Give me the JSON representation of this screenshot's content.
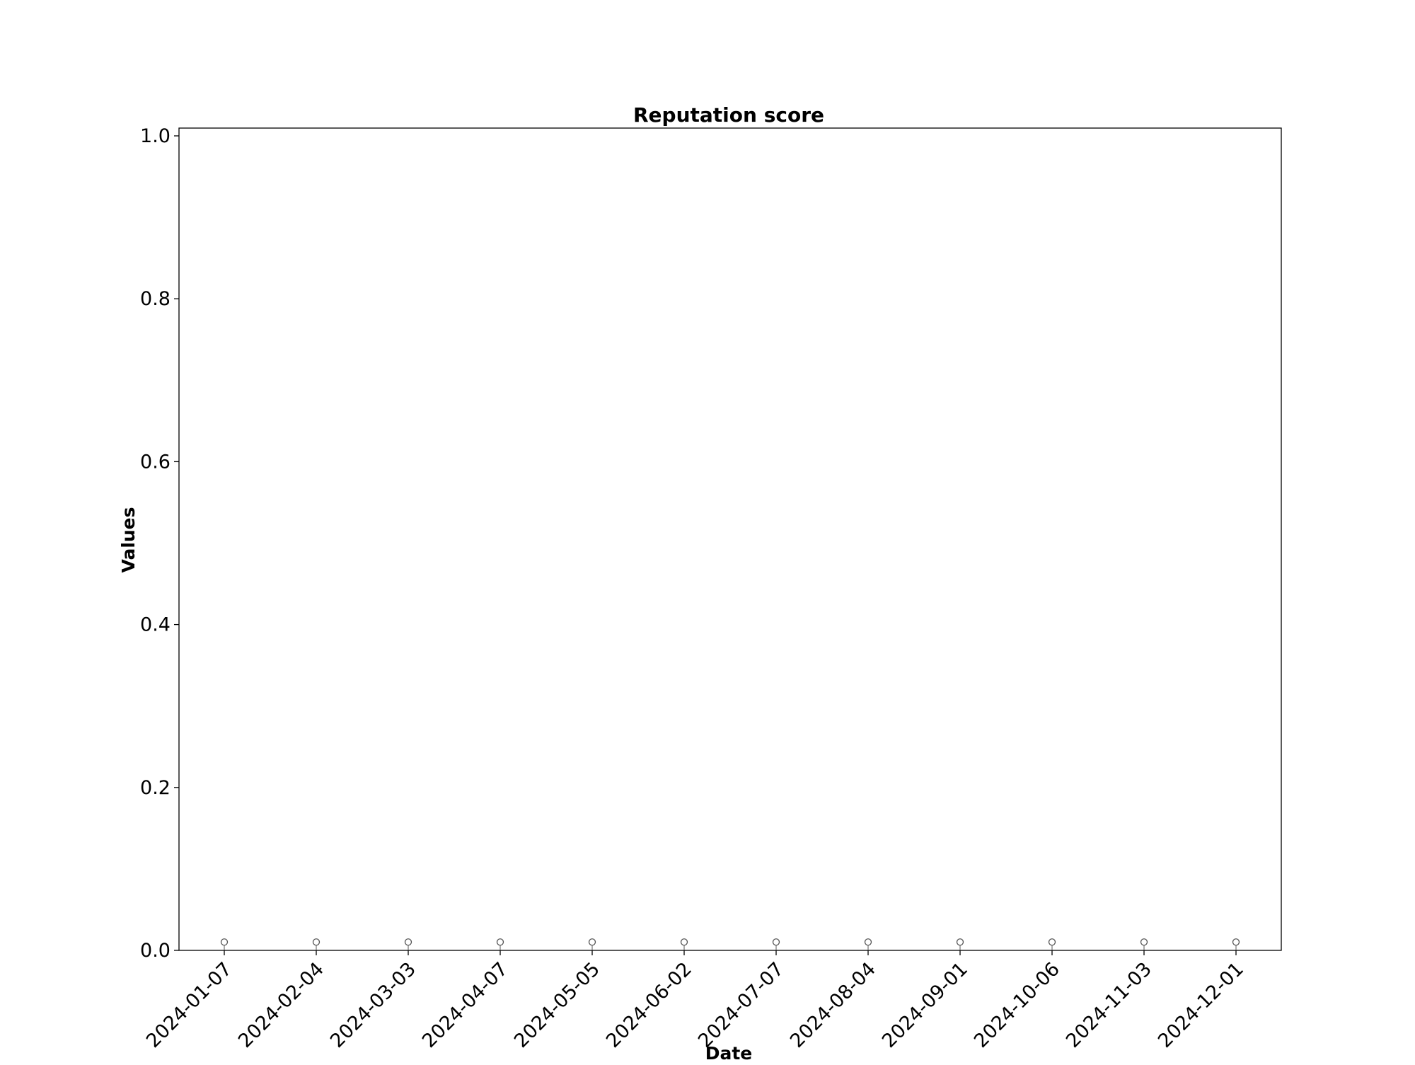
{
  "chart_data": {
    "type": "scatter",
    "title": "Reputation score",
    "xlabel": "Date",
    "ylabel": "Values",
    "ylim": [
      0,
      1.0
    ],
    "y_ticks": [
      "0.0",
      "0.2",
      "0.4",
      "0.6",
      "0.8",
      "1.0"
    ],
    "x_ticks": [
      "2024-01-07",
      "2024-02-04",
      "2024-03-03",
      "2024-04-07",
      "2024-05-05",
      "2024-06-02",
      "2024-07-07",
      "2024-08-04",
      "2024-09-01",
      "2024-10-06",
      "2024-11-03",
      "2024-12-01"
    ],
    "x": [
      "2024-01-07",
      "2024-02-04",
      "2024-03-03",
      "2024-04-07",
      "2024-05-05",
      "2024-06-02",
      "2024-07-07",
      "2024-08-04",
      "2024-09-01",
      "2024-10-06",
      "2024-11-03",
      "2024-12-01"
    ],
    "series": [
      {
        "values": [
          0.005,
          0.005,
          0.005,
          0.005,
          0.005,
          0.005,
          0.005,
          0.005,
          0.005,
          0.005,
          0.005,
          0.005
        ]
      }
    ],
    "marker": "hollow-circle",
    "marker_color": "#555555",
    "grid": false,
    "legend": "none"
  }
}
